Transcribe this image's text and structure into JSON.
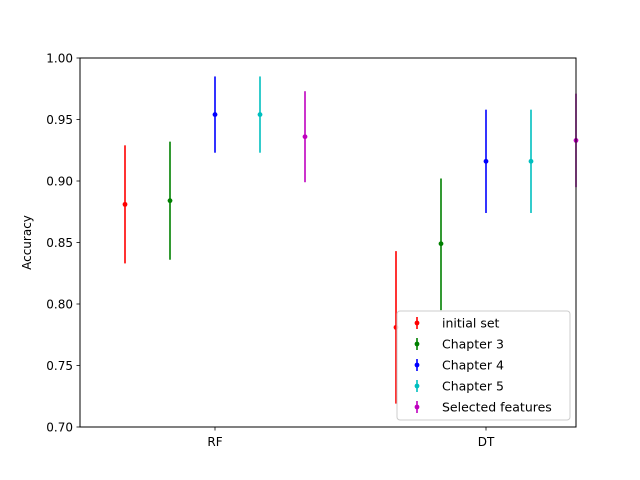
{
  "chart_data": {
    "type": "scatter",
    "title": "",
    "xlabel": "",
    "ylabel": "Accuracy",
    "categories": [
      "RF",
      "DT"
    ],
    "ylim": [
      0.7,
      1.0
    ],
    "yticks": [
      "0.70",
      "0.75",
      "0.80",
      "0.85",
      "0.90",
      "0.95",
      "1.00"
    ],
    "grid": false,
    "legend_position": "lower-right",
    "series": [
      {
        "name": "initial set",
        "color": "#ff0000",
        "values": [
          0.881,
          0.781
        ],
        "lower": [
          0.833,
          0.719
        ],
        "upper": [
          0.929,
          0.843
        ]
      },
      {
        "name": "Chapter 3",
        "color": "#008000",
        "values": [
          0.884,
          0.849
        ],
        "lower": [
          0.836,
          0.795
        ],
        "upper": [
          0.932,
          0.902
        ]
      },
      {
        "name": "Chapter 4",
        "color": "#0000ff",
        "values": [
          0.954,
          0.916
        ],
        "lower": [
          0.923,
          0.874
        ],
        "upper": [
          0.985,
          0.958
        ]
      },
      {
        "name": "Chapter 5",
        "color": "#00bfbf",
        "values": [
          0.954,
          0.916
        ],
        "lower": [
          0.923,
          0.874
        ],
        "upper": [
          0.985,
          0.958
        ]
      },
      {
        "name": "Selected features",
        "color": "#bf00bf",
        "values": [
          0.936,
          0.933
        ],
        "lower": [
          0.899,
          0.895
        ],
        "upper": [
          0.973,
          0.971
        ]
      }
    ]
  }
}
